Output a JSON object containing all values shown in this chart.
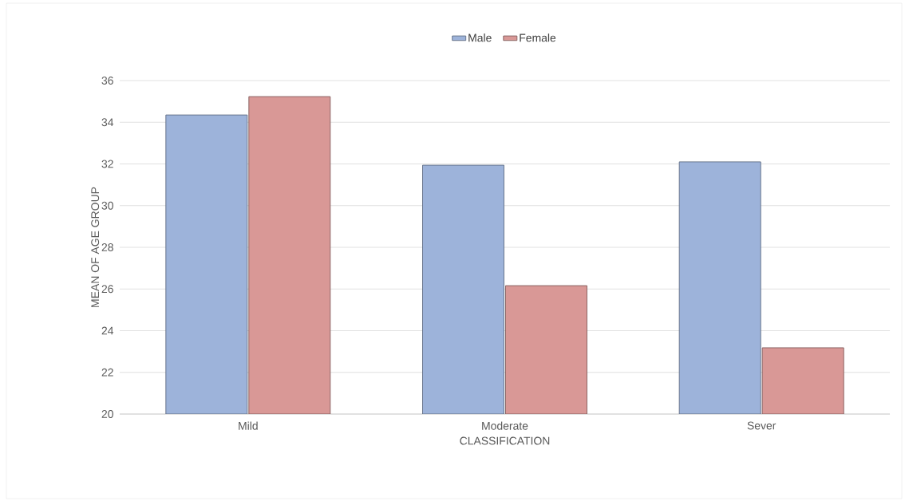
{
  "chart_data": {
    "type": "bar",
    "xlabel": "CLASSIFICATION",
    "ylabel": "MEAN OF AGE GROUP",
    "categories": [
      "Mild",
      "Moderate",
      "Sever"
    ],
    "series": [
      {
        "name": "Male",
        "color": "#9db3da",
        "values": [
          34.35,
          31.94,
          32.1
        ]
      },
      {
        "name": "Female",
        "color": "#d99896",
        "values": [
          35.23,
          26.16,
          23.18
        ]
      }
    ],
    "ylim": [
      20,
      36
    ],
    "yticks": [
      20,
      22,
      24,
      26,
      28,
      30,
      32,
      34,
      36
    ],
    "grid": "y",
    "legend": "top"
  }
}
